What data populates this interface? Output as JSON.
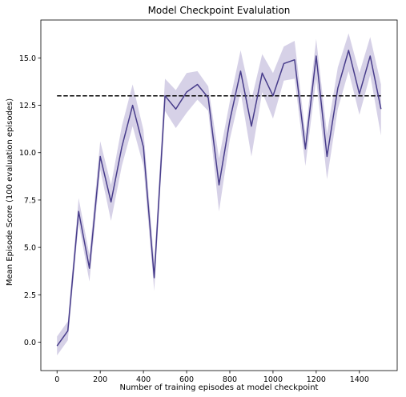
{
  "chart_data": {
    "type": "line",
    "title": "Model Checkpoint Evalulation",
    "xlabel": "Number of training episodes at model checkpoint",
    "ylabel": "Mean Episode Score (100 evaluation episodes)",
    "xlim": [
      -75,
      1575
    ],
    "ylim": [
      -1.5,
      17.0
    ],
    "xticks": [
      0,
      200,
      400,
      600,
      800,
      1000,
      1200,
      1400
    ],
    "xtick_labels": [
      "0",
      "200",
      "400",
      "600",
      "800",
      "1000",
      "1200",
      "1400"
    ],
    "yticks": [
      0.0,
      2.5,
      5.0,
      7.5,
      10.0,
      12.5,
      15.0
    ],
    "ytick_labels": [
      "0.0",
      "2.5",
      "5.0",
      "7.5",
      "10.0",
      "12.5",
      "15.0"
    ],
    "grid": false,
    "legend": "none",
    "x": [
      0,
      50,
      100,
      150,
      200,
      250,
      300,
      350,
      400,
      450,
      500,
      550,
      600,
      650,
      700,
      750,
      800,
      850,
      900,
      950,
      1000,
      1050,
      1100,
      1150,
      1200,
      1250,
      1300,
      1350,
      1400,
      1450,
      1500
    ],
    "series": [
      {
        "values": [
          -0.2,
          0.6,
          6.9,
          3.9,
          9.8,
          7.4,
          10.3,
          12.5,
          10.3,
          3.4,
          13.0,
          12.3,
          13.2,
          13.6,
          12.9,
          8.3,
          11.7,
          14.3,
          11.4,
          14.2,
          13.0,
          14.7,
          14.9,
          10.2,
          15.1,
          9.8,
          13.4,
          15.4,
          13.1,
          15.1,
          12.3
        ],
        "band_lower": [
          -0.7,
          0.1,
          6.3,
          3.2,
          9.1,
          6.4,
          9.3,
          11.4,
          9.3,
          2.7,
          12.2,
          11.3,
          12.1,
          12.8,
          12.2,
          6.9,
          10.7,
          13.2,
          9.8,
          13.2,
          11.8,
          13.8,
          13.9,
          9.3,
          13.9,
          8.6,
          12.3,
          14.3,
          12.0,
          14.1,
          10.9
        ],
        "band_upper": [
          0.3,
          1.1,
          7.6,
          4.6,
          10.6,
          8.3,
          11.4,
          13.6,
          11.2,
          4.2,
          13.9,
          13.3,
          14.2,
          14.3,
          13.5,
          9.7,
          12.7,
          15.4,
          12.8,
          15.2,
          14.2,
          15.6,
          15.9,
          11.0,
          16.0,
          11.0,
          14.5,
          16.3,
          14.2,
          16.1,
          13.6
        ],
        "color": "#483d8b",
        "band_color": "#ada3cf"
      }
    ],
    "reference_line": {
      "y": 13.0,
      "x_range": [
        0,
        1500
      ],
      "style": "dashed",
      "color": "#000000"
    }
  }
}
